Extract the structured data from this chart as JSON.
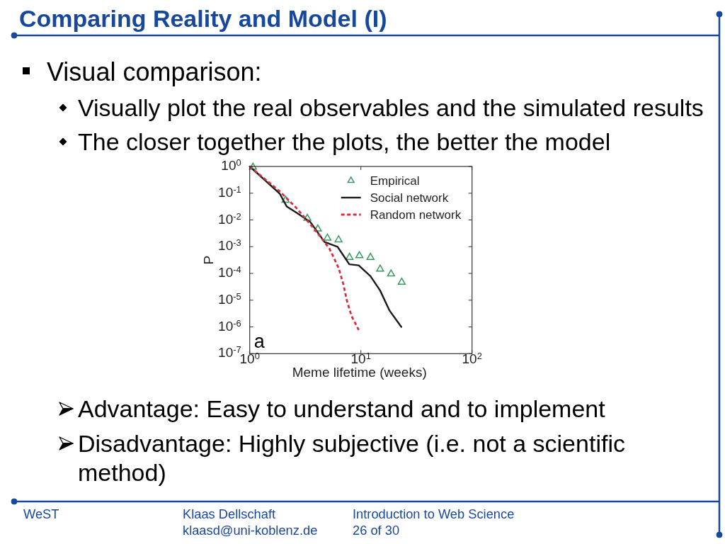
{
  "chart_data": {
    "type": "line",
    "title": "Comparing Reality and Model (I)",
    "xlabel": "Meme lifetime (weeks)",
    "ylabel": "P",
    "log": "xy",
    "xlim": [
      1,
      100
    ],
    "ylim": [
      1e-07,
      1
    ],
    "xticks": [
      {
        "value": 1,
        "label": "10$^{0}$"
      },
      {
        "value": 10,
        "label": "10$^{1}$"
      },
      {
        "value": 100,
        "label": "10$^{2}$"
      }
    ],
    "yticks": [
      {
        "value": 1e-07,
        "label": "10$^{-7}$"
      },
      {
        "value": 1e-06,
        "label": "10$^{-6}$"
      },
      {
        "value": 1e-05,
        "label": "10$^{-5}$"
      },
      {
        "value": 0.0001,
        "label": "10$^{-4}$"
      },
      {
        "value": 0.001,
        "label": "10$^{-3}$"
      },
      {
        "value": 0.01,
        "label": "10$^{-2}$"
      },
      {
        "value": 0.1,
        "label": "10$^{-1}$"
      },
      {
        "value": 1,
        "label": "10$^{0}$"
      }
    ],
    "legend": "top right",
    "series": [
      {
        "name": "Empirical",
        "type": "scatter",
        "marker": "triangle",
        "color": "#3a9a5e",
        "x": [
          1.07,
          2.1,
          3.3,
          4.1,
          5.0,
          6.3,
          7.9,
          9.7,
          12.2,
          14.9,
          18.7,
          23.3
        ],
        "values": [
          0.94,
          0.055,
          0.0115,
          0.0046,
          0.0021,
          0.0018,
          0.0004,
          0.00046,
          0.0004,
          0.000145,
          9.6e-05,
          4.7e-05
        ]
      },
      {
        "name": "Social network",
        "type": "line",
        "line_style": "solid",
        "color": "#1a1a1a",
        "x": [
          1,
          1.86,
          2.15,
          2.62,
          3.51,
          4.71,
          6.16,
          7.87,
          9.57,
          12.2,
          14.9,
          18.1,
          23.1
        ],
        "values": [
          1,
          0.097,
          0.032,
          0.019,
          0.0084,
          0.0015,
          0.001,
          0.00022,
          0.0002,
          7.9e-05,
          2.3e-05,
          4.1e-06,
          1e-06
        ]
      },
      {
        "name": "Random network",
        "type": "line",
        "line_style": "dashed",
        "color": "#d6303f",
        "x": [
          1,
          1.86,
          2.62,
          3.51,
          4.27,
          5.2,
          6.31,
          6.97,
          7.5,
          8.26,
          9.57
        ],
        "values": [
          1,
          0.118,
          0.0285,
          0.0069,
          0.0025,
          0.00087,
          0.00016,
          3.86e-05,
          9.3e-06,
          2.5e-06,
          7.7e-07
        ]
      }
    ],
    "annotations": [
      "Visual comparison:",
      "Visually plot the real observables and the simulated results",
      "The closer together the plots, the better the model",
      "Advantage: Easy to understand and to implement",
      "Disadvantage: Highly subjective (i.e. not a scientific method)",
      "a",
      "WeST",
      "Klaas Dellschaft",
      "klaasd@uni-koblenz.de",
      "Introduction to Web Science",
      "26 of 30"
    ]
  }
}
